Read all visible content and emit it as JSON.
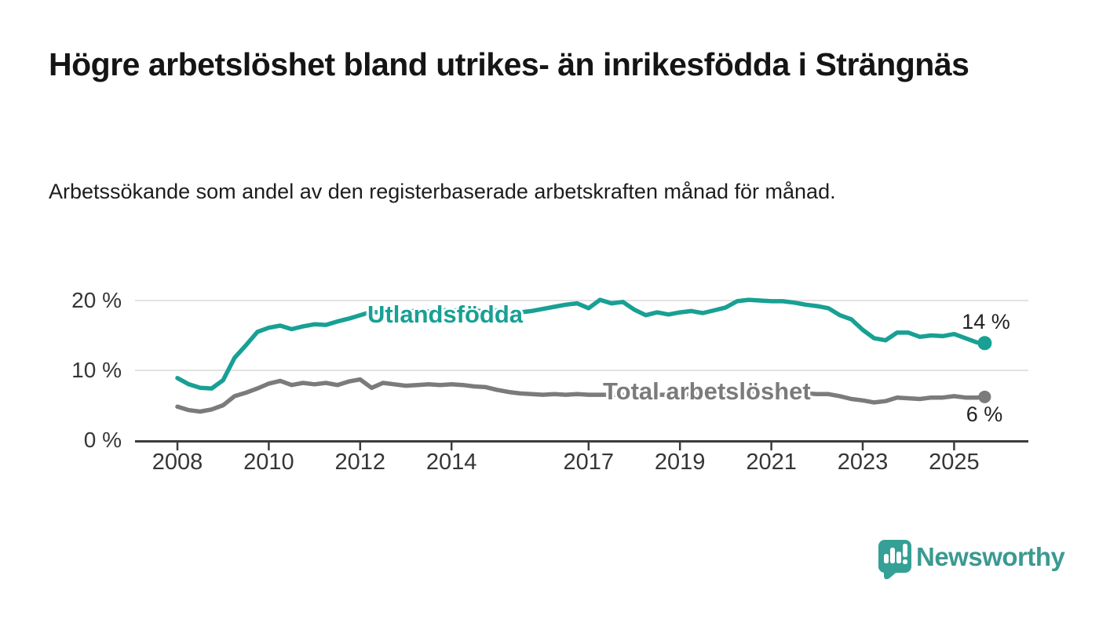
{
  "header": {
    "title": "Högre arbetslöshet bland utrikes- än inrikesfödda i Strängnäs",
    "subtitle": "Arbetssökande som andel av den registerbaserade arbetskraften månad för månad."
  },
  "chart_data": {
    "type": "line",
    "title": "Högre arbetslöshet bland utrikes- än inrikesfödda i Strängnäs",
    "xlabel": "",
    "ylabel": "",
    "x_unit": "decimal_year",
    "xlim": [
      2007.1,
      2026.6
    ],
    "ylim": [
      0,
      22.4
    ],
    "grid": "horizontal",
    "legend_position": "labels-on-lines",
    "yticks": [
      {
        "value": 0,
        "label": "0 %"
      },
      {
        "value": 10,
        "label": "10 %"
      },
      {
        "value": 20,
        "label": "20 %"
      }
    ],
    "xticks": [
      {
        "value": 2008,
        "label": "2008"
      },
      {
        "value": 2010,
        "label": "2010"
      },
      {
        "value": 2012,
        "label": "2012"
      },
      {
        "value": 2014,
        "label": "2014"
      },
      {
        "value": 2017,
        "label": "2017"
      },
      {
        "value": 2019,
        "label": "2019"
      },
      {
        "value": 2021,
        "label": "2021"
      },
      {
        "value": 2023,
        "label": "2023"
      },
      {
        "value": 2025,
        "label": "2025"
      }
    ],
    "x": [
      2008.0,
      2008.25,
      2008.5,
      2008.75,
      2009.0,
      2009.25,
      2009.5,
      2009.75,
      2010.0,
      2010.25,
      2010.5,
      2010.75,
      2011.0,
      2011.25,
      2011.5,
      2011.75,
      2012.0,
      2012.25,
      2012.5,
      2012.75,
      2013.0,
      2013.25,
      2013.5,
      2013.75,
      2014.0,
      2014.25,
      2014.5,
      2014.75,
      2015.0,
      2015.25,
      2015.5,
      2015.75,
      2016.0,
      2016.25,
      2016.5,
      2016.75,
      2017.0,
      2017.25,
      2017.5,
      2017.75,
      2018.0,
      2018.25,
      2018.5,
      2018.75,
      2019.0,
      2019.25,
      2019.5,
      2019.75,
      2020.0,
      2020.25,
      2020.5,
      2020.75,
      2021.0,
      2021.25,
      2021.5,
      2021.75,
      2022.0,
      2022.25,
      2022.5,
      2022.75,
      2023.0,
      2023.25,
      2023.5,
      2023.75,
      2024.0,
      2024.25,
      2024.5,
      2024.75,
      2025.0,
      2025.25,
      2025.5,
      2025.67
    ],
    "series": [
      {
        "name": "Utlandsfödda",
        "color": "#18A094",
        "end_label": "14 %",
        "end_value": 14,
        "values": [
          8.9,
          8.0,
          7.5,
          7.4,
          8.6,
          11.8,
          13.6,
          15.5,
          16.1,
          16.4,
          15.9,
          16.3,
          16.6,
          16.5,
          17.0,
          17.4,
          17.9,
          18.4,
          18.2,
          18.5,
          18.3,
          18.6,
          18.4,
          18.7,
          18.5,
          18.8,
          18.6,
          18.4,
          18.6,
          18.5,
          18.3,
          18.5,
          18.8,
          19.1,
          19.4,
          19.6,
          18.9,
          20.1,
          19.6,
          19.8,
          18.7,
          17.9,
          18.3,
          18.0,
          18.3,
          18.5,
          18.2,
          18.6,
          19.0,
          19.9,
          20.1,
          20.0,
          19.9,
          19.9,
          19.7,
          19.4,
          19.2,
          18.9,
          17.9,
          17.3,
          15.8,
          14.6,
          14.3,
          15.4,
          15.4,
          14.8,
          15.0,
          14.9,
          15.2,
          14.6,
          14.0,
          13.9
        ]
      },
      {
        "name": "Total arbetslöshet",
        "color": "#7B7B7B",
        "end_label": "6 %",
        "end_value": 6,
        "values": [
          4.8,
          4.3,
          4.1,
          4.4,
          5.0,
          6.3,
          6.8,
          7.4,
          8.1,
          8.5,
          7.9,
          8.2,
          8.0,
          8.2,
          7.9,
          8.4,
          8.7,
          7.5,
          8.2,
          8.0,
          7.8,
          7.9,
          8.0,
          7.9,
          8.0,
          7.9,
          7.7,
          7.6,
          7.2,
          6.9,
          6.7,
          6.6,
          6.5,
          6.6,
          6.5,
          6.6,
          6.5,
          6.5,
          6.5,
          6.5,
          6.4,
          6.4,
          6.5,
          6.5,
          6.5,
          6.6,
          6.6,
          6.7,
          6.8,
          7.0,
          7.0,
          6.9,
          6.8,
          6.8,
          6.7,
          6.7,
          6.6,
          6.6,
          6.3,
          5.9,
          5.7,
          5.4,
          5.6,
          6.1,
          6.0,
          5.9,
          6.1,
          6.1,
          6.3,
          6.1,
          6.1,
          6.2
        ]
      }
    ]
  },
  "colors": {
    "accent": "#18A094",
    "series_gray": "#7B7B7B",
    "axis": "#3C3C3C",
    "grid": "#D9D9D9",
    "text": "#151515",
    "brand": "#3A9A90"
  },
  "footer": {
    "brand": "Newsworthy"
  }
}
